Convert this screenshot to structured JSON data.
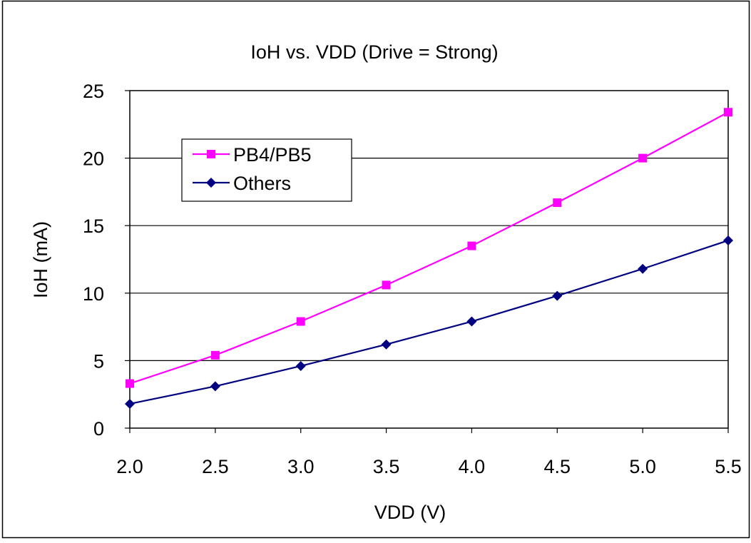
{
  "chart_data": {
    "type": "line",
    "title": "IoH vs. VDD (Drive = Strong)",
    "xlabel": "VDD (V)",
    "ylabel": "IoH (mA)",
    "x": [
      2.0,
      2.5,
      3.0,
      3.5,
      4.0,
      4.5,
      5.0,
      5.5
    ],
    "xlim": [
      2.0,
      5.5
    ],
    "ylim": [
      0,
      25
    ],
    "x_ticks": [
      "2.0",
      "2.5",
      "3.0",
      "3.5",
      "4.0",
      "4.5",
      "5.0",
      "5.5"
    ],
    "y_ticks": [
      "0",
      "5",
      "10",
      "15",
      "20",
      "25"
    ],
    "grid": "horizontal",
    "legend_position": "upper-left",
    "series": [
      {
        "name": "PB4/PB5",
        "color": "#FF00FF",
        "marker": "square",
        "values": [
          3.3,
          5.4,
          7.9,
          10.6,
          13.5,
          16.7,
          20.0,
          23.4
        ]
      },
      {
        "name": "Others",
        "color": "#000080",
        "marker": "diamond",
        "values": [
          1.8,
          3.1,
          4.6,
          6.2,
          7.9,
          9.8,
          11.8,
          13.9
        ]
      }
    ]
  }
}
